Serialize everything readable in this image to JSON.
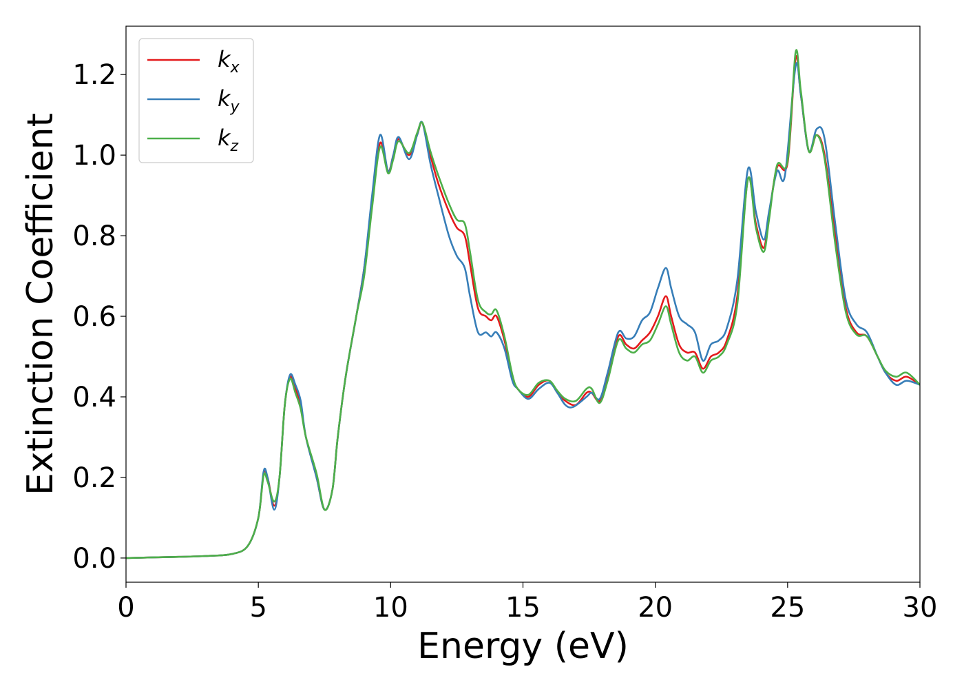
{
  "chart_data": {
    "type": "line",
    "title": "",
    "xlabel": "Energy (eV)",
    "ylabel": "Extinction Coefficient",
    "xlim": [
      0,
      30
    ],
    "ylim": [
      -0.06,
      1.32
    ],
    "xticks": [
      0,
      5,
      10,
      15,
      20,
      25,
      30
    ],
    "xtick_labels": [
      "0",
      "5",
      "10",
      "15",
      "20",
      "25",
      "30"
    ],
    "yticks": [
      0.0,
      0.2,
      0.4,
      0.6,
      0.8,
      1.0,
      1.2
    ],
    "ytick_labels": [
      "0.0",
      "0.2",
      "0.4",
      "0.6",
      "0.8",
      "1.0",
      "1.2"
    ],
    "grid": false,
    "legend_position": "top-left",
    "series": [
      {
        "name": "k_x",
        "legend_main": "k",
        "legend_sub": "x",
        "color": "#e41a1c",
        "points": [
          [
            0,
            0
          ],
          [
            2,
            0.003
          ],
          [
            3,
            0.005
          ],
          [
            4,
            0.01
          ],
          [
            4.6,
            0.03
          ],
          [
            5,
            0.1
          ],
          [
            5.2,
            0.21
          ],
          [
            5.35,
            0.2
          ],
          [
            5.6,
            0.13
          ],
          [
            5.8,
            0.2
          ],
          [
            6,
            0.38
          ],
          [
            6.2,
            0.45
          ],
          [
            6.4,
            0.42
          ],
          [
            6.6,
            0.38
          ],
          [
            6.8,
            0.3
          ],
          [
            7.2,
            0.2
          ],
          [
            7.5,
            0.12
          ],
          [
            7.8,
            0.17
          ],
          [
            8,
            0.3
          ],
          [
            8.3,
            0.45
          ],
          [
            8.7,
            0.6
          ],
          [
            9,
            0.72
          ],
          [
            9.3,
            0.88
          ],
          [
            9.6,
            1.03
          ],
          [
            9.9,
            0.96
          ],
          [
            10.1,
            1.0
          ],
          [
            10.3,
            1.04
          ],
          [
            10.7,
            1.0
          ],
          [
            11,
            1.05
          ],
          [
            11.2,
            1.08
          ],
          [
            11.5,
            1.0
          ],
          [
            11.8,
            0.93
          ],
          [
            12.2,
            0.86
          ],
          [
            12.5,
            0.82
          ],
          [
            12.8,
            0.8
          ],
          [
            13,
            0.73
          ],
          [
            13.3,
            0.62
          ],
          [
            13.6,
            0.6
          ],
          [
            13.8,
            0.59
          ],
          [
            14,
            0.6
          ],
          [
            14.3,
            0.54
          ],
          [
            14.6,
            0.45
          ],
          [
            14.8,
            0.42
          ],
          [
            15.2,
            0.4
          ],
          [
            15.6,
            0.43
          ],
          [
            16,
            0.44
          ],
          [
            16.3,
            0.41
          ],
          [
            16.6,
            0.39
          ],
          [
            17,
            0.38
          ],
          [
            17.4,
            0.41
          ],
          [
            17.6,
            0.41
          ],
          [
            17.9,
            0.39
          ],
          [
            18.2,
            0.45
          ],
          [
            18.6,
            0.55
          ],
          [
            18.9,
            0.53
          ],
          [
            19.2,
            0.52
          ],
          [
            19.5,
            0.54
          ],
          [
            19.8,
            0.56
          ],
          [
            20.1,
            0.6
          ],
          [
            20.4,
            0.65
          ],
          [
            20.6,
            0.6
          ],
          [
            20.9,
            0.53
          ],
          [
            21.2,
            0.51
          ],
          [
            21.5,
            0.51
          ],
          [
            21.8,
            0.47
          ],
          [
            22.1,
            0.5
          ],
          [
            22.4,
            0.51
          ],
          [
            22.7,
            0.54
          ],
          [
            23.1,
            0.65
          ],
          [
            23.5,
            0.94
          ],
          [
            23.8,
            0.83
          ],
          [
            24.1,
            0.77
          ],
          [
            24.3,
            0.85
          ],
          [
            24.6,
            0.97
          ],
          [
            25,
            0.98
          ],
          [
            25.3,
            1.24
          ],
          [
            25.5,
            1.15
          ],
          [
            25.8,
            1.01
          ],
          [
            26.1,
            1.05
          ],
          [
            26.4,
            1.0
          ],
          [
            26.8,
            0.8
          ],
          [
            27.2,
            0.62
          ],
          [
            27.6,
            0.56
          ],
          [
            28,
            0.55
          ],
          [
            28.4,
            0.5
          ],
          [
            28.7,
            0.46
          ],
          [
            29.1,
            0.44
          ],
          [
            29.5,
            0.45
          ],
          [
            30,
            0.43
          ]
        ]
      },
      {
        "name": "k_y",
        "legend_main": "k",
        "legend_sub": "y",
        "color": "#377eb8",
        "points": [
          [
            0,
            0
          ],
          [
            2,
            0.003
          ],
          [
            3,
            0.005
          ],
          [
            4,
            0.01
          ],
          [
            4.6,
            0.03
          ],
          [
            5,
            0.1
          ],
          [
            5.2,
            0.215
          ],
          [
            5.35,
            0.2
          ],
          [
            5.6,
            0.12
          ],
          [
            5.8,
            0.2
          ],
          [
            6,
            0.38
          ],
          [
            6.2,
            0.455
          ],
          [
            6.4,
            0.43
          ],
          [
            6.6,
            0.39
          ],
          [
            6.8,
            0.3
          ],
          [
            7.2,
            0.2
          ],
          [
            7.5,
            0.12
          ],
          [
            7.8,
            0.17
          ],
          [
            8,
            0.3
          ],
          [
            8.3,
            0.45
          ],
          [
            8.7,
            0.6
          ],
          [
            9,
            0.72
          ],
          [
            9.3,
            0.9
          ],
          [
            9.6,
            1.05
          ],
          [
            9.9,
            0.96
          ],
          [
            10.1,
            1.0
          ],
          [
            10.3,
            1.045
          ],
          [
            10.7,
            0.99
          ],
          [
            11,
            1.05
          ],
          [
            11.2,
            1.08
          ],
          [
            11.5,
            0.98
          ],
          [
            11.8,
            0.9
          ],
          [
            12.2,
            0.8
          ],
          [
            12.5,
            0.75
          ],
          [
            12.8,
            0.72
          ],
          [
            13,
            0.65
          ],
          [
            13.3,
            0.56
          ],
          [
            13.6,
            0.56
          ],
          [
            13.8,
            0.55
          ],
          [
            14,
            0.56
          ],
          [
            14.3,
            0.52
          ],
          [
            14.6,
            0.44
          ],
          [
            14.8,
            0.42
          ],
          [
            15.2,
            0.395
          ],
          [
            15.6,
            0.42
          ],
          [
            16,
            0.435
          ],
          [
            16.3,
            0.41
          ],
          [
            16.6,
            0.38
          ],
          [
            16.9,
            0.375
          ],
          [
            17.4,
            0.4
          ],
          [
            17.6,
            0.41
          ],
          [
            17.9,
            0.395
          ],
          [
            18.2,
            0.46
          ],
          [
            18.6,
            0.56
          ],
          [
            18.9,
            0.545
          ],
          [
            19.2,
            0.55
          ],
          [
            19.5,
            0.59
          ],
          [
            19.8,
            0.61
          ],
          [
            20.1,
            0.67
          ],
          [
            20.4,
            0.72
          ],
          [
            20.6,
            0.67
          ],
          [
            20.9,
            0.6
          ],
          [
            21.2,
            0.58
          ],
          [
            21.5,
            0.56
          ],
          [
            21.8,
            0.49
          ],
          [
            22.1,
            0.53
          ],
          [
            22.4,
            0.54
          ],
          [
            22.7,
            0.57
          ],
          [
            23.1,
            0.69
          ],
          [
            23.5,
            0.965
          ],
          [
            23.8,
            0.86
          ],
          [
            24.1,
            0.79
          ],
          [
            24.3,
            0.86
          ],
          [
            24.6,
            0.96
          ],
          [
            24.9,
            0.95
          ],
          [
            25.3,
            1.22
          ],
          [
            25.5,
            1.15
          ],
          [
            25.8,
            1.01
          ],
          [
            26.1,
            1.065
          ],
          [
            26.4,
            1.04
          ],
          [
            26.8,
            0.83
          ],
          [
            27.2,
            0.64
          ],
          [
            27.6,
            0.58
          ],
          [
            28,
            0.56
          ],
          [
            28.4,
            0.5
          ],
          [
            28.7,
            0.46
          ],
          [
            29.1,
            0.43
          ],
          [
            29.5,
            0.44
          ],
          [
            30,
            0.43
          ]
        ]
      },
      {
        "name": "k_z",
        "legend_main": "k",
        "legend_sub": "z",
        "color": "#4daf4a",
        "points": [
          [
            0,
            0
          ],
          [
            2,
            0.003
          ],
          [
            3,
            0.005
          ],
          [
            4,
            0.01
          ],
          [
            4.6,
            0.03
          ],
          [
            5,
            0.1
          ],
          [
            5.2,
            0.205
          ],
          [
            5.35,
            0.19
          ],
          [
            5.6,
            0.14
          ],
          [
            5.8,
            0.2
          ],
          [
            6,
            0.38
          ],
          [
            6.2,
            0.445
          ],
          [
            6.4,
            0.41
          ],
          [
            6.6,
            0.37
          ],
          [
            6.8,
            0.3
          ],
          [
            7.2,
            0.21
          ],
          [
            7.5,
            0.12
          ],
          [
            7.8,
            0.17
          ],
          [
            8,
            0.3
          ],
          [
            8.3,
            0.45
          ],
          [
            8.7,
            0.6
          ],
          [
            9,
            0.7
          ],
          [
            9.3,
            0.87
          ],
          [
            9.6,
            1.02
          ],
          [
            9.9,
            0.955
          ],
          [
            10.1,
            0.99
          ],
          [
            10.3,
            1.035
          ],
          [
            10.7,
            1.005
          ],
          [
            11,
            1.055
          ],
          [
            11.2,
            1.08
          ],
          [
            11.5,
            1.01
          ],
          [
            11.8,
            0.95
          ],
          [
            12.2,
            0.88
          ],
          [
            12.5,
            0.84
          ],
          [
            12.8,
            0.83
          ],
          [
            13,
            0.76
          ],
          [
            13.3,
            0.64
          ],
          [
            13.6,
            0.61
          ],
          [
            13.8,
            0.605
          ],
          [
            14,
            0.615
          ],
          [
            14.3,
            0.55
          ],
          [
            14.6,
            0.455
          ],
          [
            14.8,
            0.42
          ],
          [
            15.2,
            0.405
          ],
          [
            15.6,
            0.435
          ],
          [
            16,
            0.44
          ],
          [
            16.3,
            0.415
          ],
          [
            16.6,
            0.395
          ],
          [
            17,
            0.39
          ],
          [
            17.4,
            0.42
          ],
          [
            17.6,
            0.42
          ],
          [
            17.9,
            0.385
          ],
          [
            18.2,
            0.44
          ],
          [
            18.6,
            0.54
          ],
          [
            18.9,
            0.52
          ],
          [
            19.2,
            0.51
          ],
          [
            19.5,
            0.53
          ],
          [
            19.8,
            0.54
          ],
          [
            20.1,
            0.58
          ],
          [
            20.4,
            0.625
          ],
          [
            20.6,
            0.58
          ],
          [
            20.9,
            0.51
          ],
          [
            21.2,
            0.49
          ],
          [
            21.5,
            0.5
          ],
          [
            21.8,
            0.46
          ],
          [
            22.1,
            0.49
          ],
          [
            22.4,
            0.5
          ],
          [
            22.7,
            0.53
          ],
          [
            23.1,
            0.63
          ],
          [
            23.5,
            0.94
          ],
          [
            23.8,
            0.82
          ],
          [
            24.1,
            0.76
          ],
          [
            24.3,
            0.84
          ],
          [
            24.6,
            0.975
          ],
          [
            25,
            0.985
          ],
          [
            25.3,
            1.255
          ],
          [
            25.5,
            1.16
          ],
          [
            25.8,
            1.01
          ],
          [
            26.1,
            1.05
          ],
          [
            26.4,
            0.99
          ],
          [
            26.8,
            0.78
          ],
          [
            27.2,
            0.61
          ],
          [
            27.6,
            0.555
          ],
          [
            28,
            0.55
          ],
          [
            28.4,
            0.5
          ],
          [
            28.7,
            0.465
          ],
          [
            29.1,
            0.45
          ],
          [
            29.5,
            0.46
          ],
          [
            30,
            0.43
          ]
        ]
      }
    ]
  }
}
